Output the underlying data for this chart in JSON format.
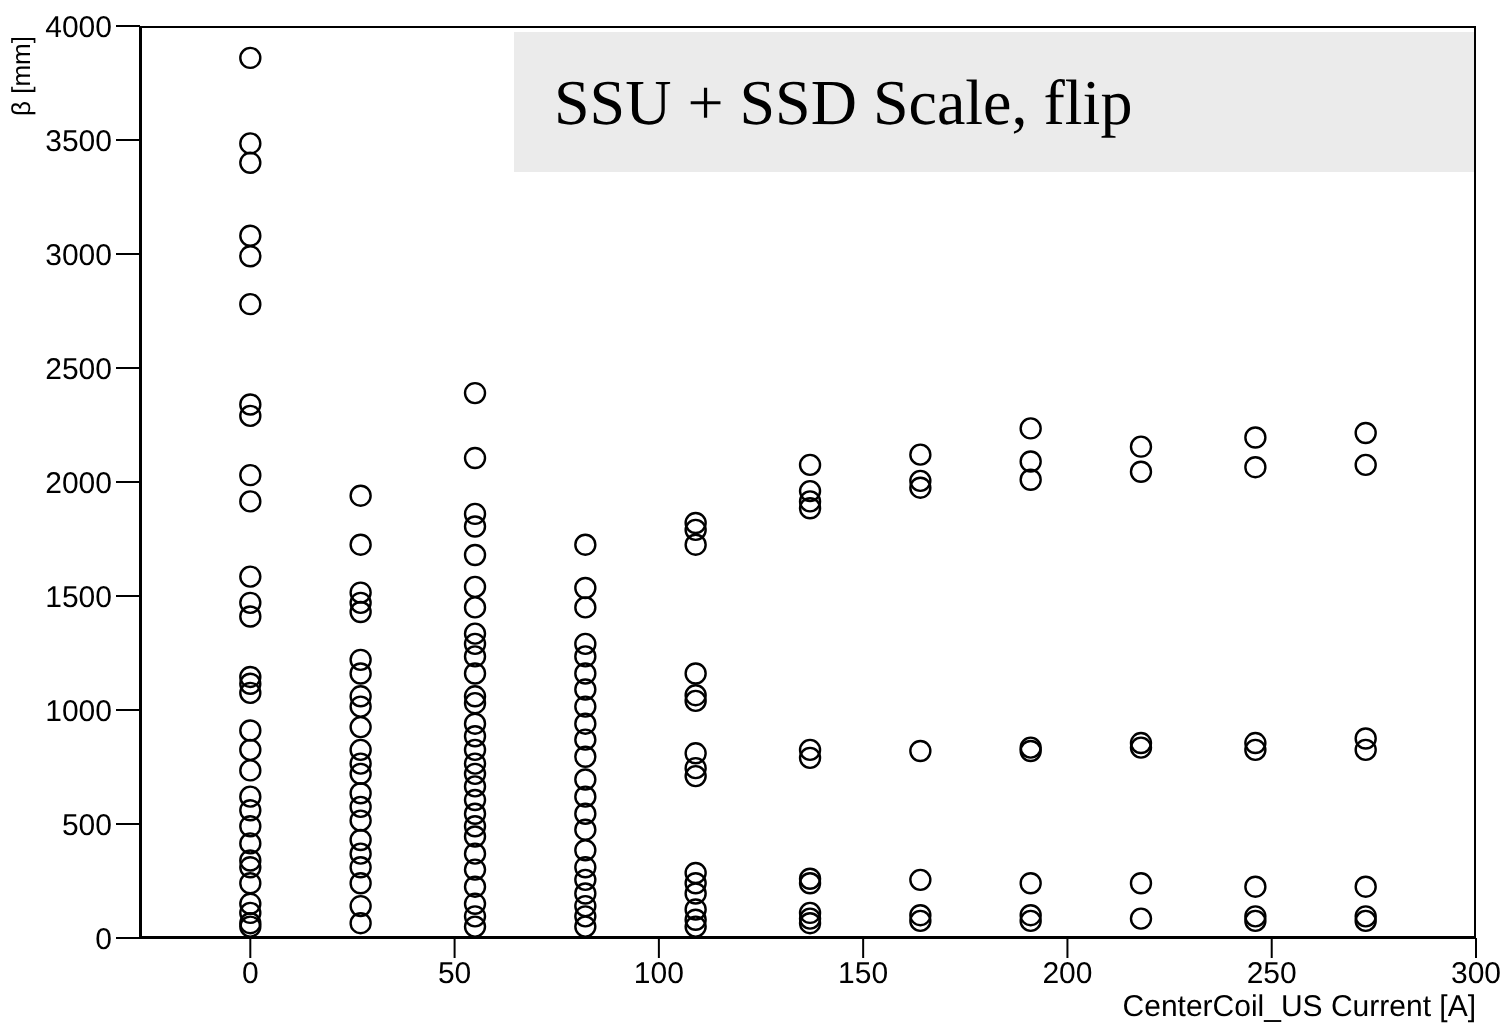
{
  "chart_data": {
    "type": "scatter",
    "title": "SSU + SSD Scale, flip",
    "xlabel": "CenterCoil_US Current [A]",
    "ylabel": "β [mm]",
    "x": [
      0,
      0,
      0,
      0,
      0,
      0,
      0,
      0,
      0,
      0,
      0,
      0,
      0,
      0,
      0,
      0,
      0,
      0,
      0,
      0,
      0,
      0,
      0,
      0,
      0,
      0,
      0,
      0,
      0,
      0,
      27,
      27,
      27,
      27,
      27,
      27,
      27,
      27,
      27,
      27,
      27,
      27,
      27,
      27,
      27,
      27,
      27,
      27,
      27,
      27,
      27,
      27,
      55,
      55,
      55,
      55,
      55,
      55,
      55,
      55,
      55,
      55,
      55,
      55,
      55,
      55,
      55,
      55,
      55,
      55,
      55,
      55,
      55,
      55,
      55,
      55,
      55,
      55,
      55,
      55,
      55,
      82,
      82,
      82,
      82,
      82,
      82,
      82,
      82,
      82,
      82,
      82,
      82,
      82,
      82,
      82,
      82,
      82,
      82,
      82,
      82,
      82,
      82,
      109,
      109,
      109,
      109,
      109,
      109,
      109,
      109,
      109,
      109,
      109,
      109,
      109,
      109,
      109,
      137,
      137,
      137,
      137,
      137,
      137,
      137,
      137,
      137,
      137,
      137,
      164,
      164,
      164,
      164,
      164,
      164,
      164,
      191,
      191,
      191,
      191,
      191,
      191,
      191,
      191,
      218,
      218,
      218,
      218,
      218,
      218,
      246,
      246,
      246,
      246,
      246,
      246,
      246,
      273,
      273,
      273,
      273,
      273,
      273,
      273
    ],
    "values": [
      3860,
      3485,
      3400,
      3080,
      2990,
      2780,
      2340,
      2290,
      2030,
      1915,
      1585,
      1470,
      1410,
      1145,
      1115,
      1075,
      910,
      825,
      735,
      620,
      560,
      490,
      415,
      340,
      310,
      240,
      150,
      110,
      65,
      50,
      1940,
      1725,
      1515,
      1470,
      1430,
      1220,
      1160,
      1060,
      1015,
      925,
      825,
      765,
      720,
      635,
      575,
      515,
      430,
      370,
      310,
      240,
      140,
      65,
      2390,
      2105,
      1860,
      1805,
      1680,
      1540,
      1450,
      1335,
      1290,
      1235,
      1160,
      1060,
      1030,
      940,
      885,
      825,
      765,
      720,
      665,
      605,
      545,
      490,
      445,
      370,
      300,
      225,
      150,
      95,
      50,
      1725,
      1535,
      1450,
      1290,
      1235,
      1160,
      1090,
      1015,
      940,
      870,
      795,
      695,
      620,
      545,
      475,
      385,
      310,
      255,
      195,
      140,
      95,
      50,
      1820,
      1790,
      1725,
      1160,
      1065,
      1040,
      810,
      745,
      710,
      285,
      240,
      195,
      125,
      80,
      50,
      2075,
      1960,
      1915,
      1885,
      825,
      790,
      260,
      240,
      110,
      85,
      65,
      2120,
      2005,
      1975,
      820,
      255,
      100,
      75,
      2235,
      2090,
      2010,
      835,
      820,
      240,
      100,
      75,
      2155,
      2045,
      855,
      835,
      240,
      85,
      2195,
      2065,
      855,
      825,
      225,
      95,
      75,
      2215,
      2075,
      875,
      825,
      225,
      95,
      75
    ],
    "color": "#000000",
    "marker": "circle",
    "xlim": [
      -27,
      300
    ],
    "xticks": [
      0,
      50,
      100,
      150,
      200,
      250,
      300
    ],
    "ylim": [
      0,
      4000
    ],
    "yticks": [
      0,
      500,
      1000,
      1500,
      2000,
      2500,
      3000,
      3500,
      4000
    ]
  }
}
